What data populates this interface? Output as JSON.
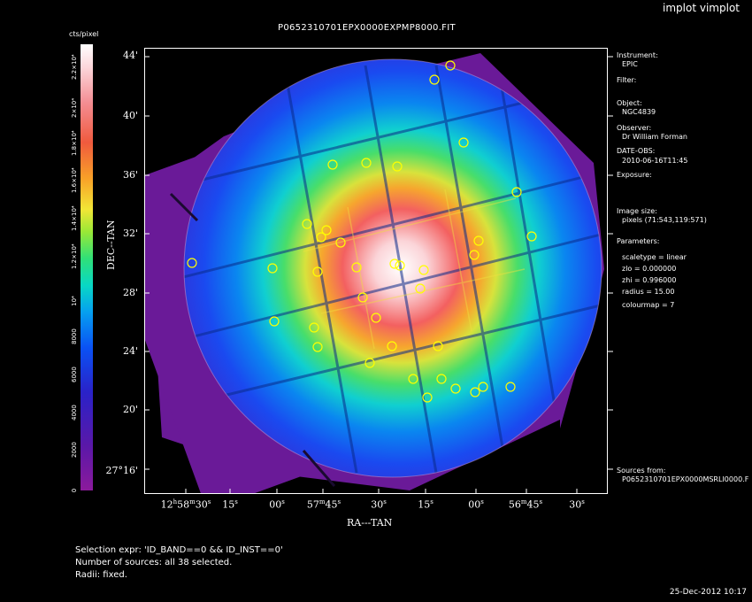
{
  "app_title": "implot vimplot",
  "plot_title": "P0652310701EPX0000EXPMP8000.FIT",
  "colorbar": {
    "label": "cts/pixel",
    "ticks": [
      "0",
      "2000",
      "4000",
      "6000",
      "8000",
      "10⁴",
      "1.2×10⁴",
      "1.4×10⁴",
      "1.6×10⁴",
      "1.8×10⁴",
      "2×10⁴",
      "2.2×10⁴"
    ]
  },
  "axes": {
    "y_title": "DEC--TAN",
    "x_title": "RA---TAN",
    "y_ticks": [
      "44'",
      "40'",
      "36'",
      "32'",
      "28'",
      "24'",
      "20'",
      "27°16'"
    ],
    "x_ticks": [
      {
        "h": "12",
        "m": "58",
        "s": "30"
      },
      {
        "s": "15"
      },
      {
        "s": "00"
      },
      {
        "m": "57",
        "s": "45"
      },
      {
        "s": "30"
      },
      {
        "s": "15"
      },
      {
        "s": "00"
      },
      {
        "m": "56",
        "s": "45"
      },
      {
        "s": "30"
      }
    ]
  },
  "info": {
    "instrument_label": "Instrument:",
    "instrument": "EPIC",
    "filter_label": "Filter:",
    "object_label": "Object:",
    "object": "NGC4839",
    "observer_label": "Observer:",
    "observer": "Dr William Forman",
    "date_label": "DATE-OBS:",
    "date": "2010-06-16T11:45",
    "exposure_label": "Exposure:",
    "image_size_label": "Image size:",
    "image_size": "pixels (71:543,119:571)",
    "parameters_label": "Parameters:",
    "param_scaletype": "scaletype = linear",
    "param_zlo": "zlo = 0.000000",
    "param_zhi": "zhi = 0.996000",
    "param_radius": "radius = 15.00",
    "param_colourmap": "colourmap = 7",
    "sources_label": "Sources from:",
    "sources": "P0652310701EPX0000MSRLI0000.F"
  },
  "footer": {
    "selection": "Selection expr: 'ID_BAND==0 && ID_INST==0'",
    "count": "Number of sources: all 38 selected.",
    "radii": "Radii: fixed."
  },
  "datestamp": "25-Dec-2012 10:17",
  "colors": {
    "source_circle": "#ffff00",
    "frame": "#ffffff",
    "background": "#000000"
  }
}
